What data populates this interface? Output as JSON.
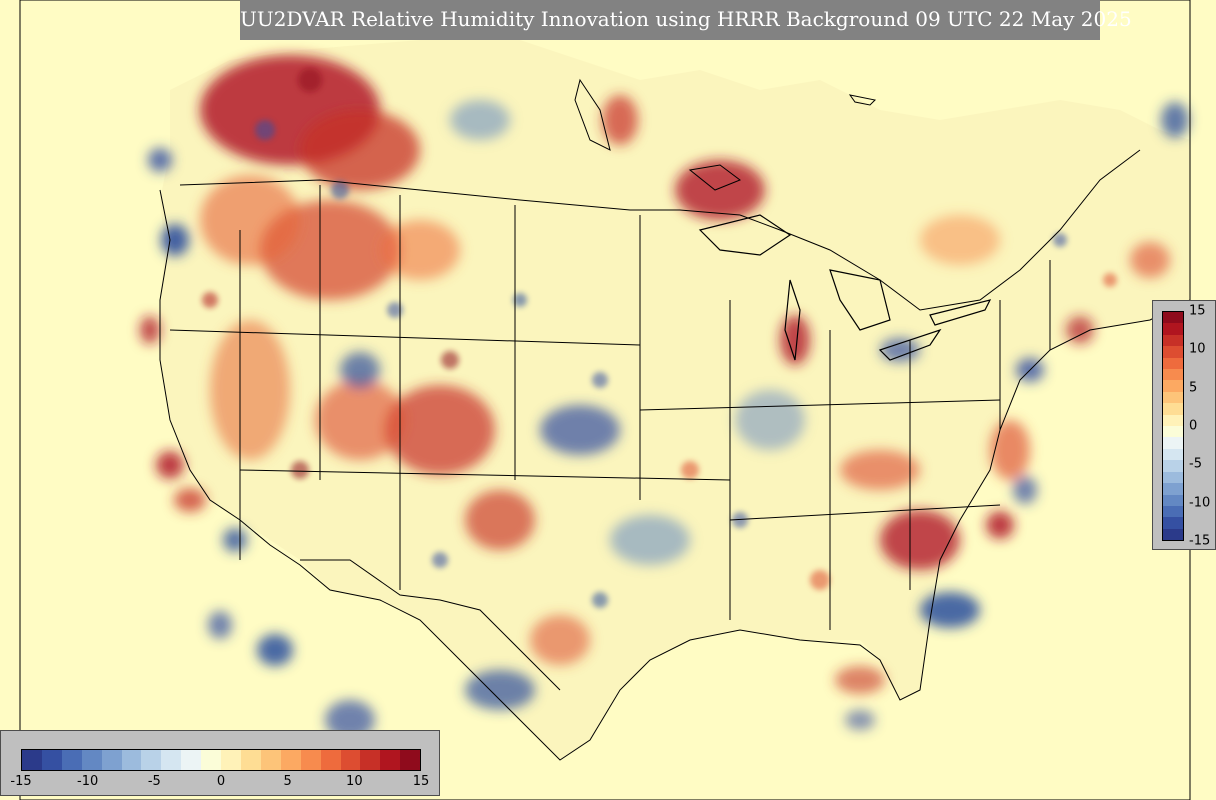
{
  "title": "UU2DVAR Relative Humidity Innovation using HRRR Background 09 UTC 22 May 2025",
  "colorbar": {
    "ticks": [
      "-15",
      "-10",
      "-5",
      "0",
      "5",
      "10",
      "15"
    ],
    "right_ticks": [
      "15",
      "10",
      "5",
      "0",
      "-5",
      "-10",
      "-15"
    ],
    "min": -15,
    "max": 15,
    "colors": [
      "#2b3a8a",
      "#3550a2",
      "#4a6db5",
      "#6388c3",
      "#7ea1d0",
      "#9cbbdd",
      "#b9d2e8",
      "#d5e6f1",
      "#ecf4f5",
      "#fbfdd8",
      "#fff2b8",
      "#fedd94",
      "#fdc479",
      "#fca962",
      "#f78b4e",
      "#ee6b3d",
      "#dd4d31",
      "#c73027",
      "#b0151f",
      "#8f0b1c"
    ]
  },
  "map": {
    "background_color": "#fffcc4",
    "moist_color": "#b2182b",
    "dry_color": "#2c4f9e",
    "border_color": "#000000"
  }
}
